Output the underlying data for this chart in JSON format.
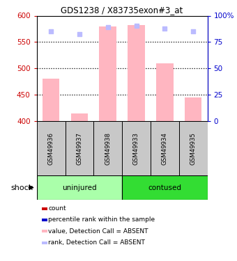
{
  "title": "GDS1238 / X83735exon#3_at",
  "samples": [
    "GSM49936",
    "GSM49937",
    "GSM49938",
    "GSM49933",
    "GSM49934",
    "GSM49935"
  ],
  "groups": [
    {
      "label": "uninjured",
      "indices": [
        0,
        1,
        2
      ],
      "color": "#AAFFAA"
    },
    {
      "label": "contused",
      "indices": [
        3,
        4,
        5
      ],
      "color": "#33DD33"
    }
  ],
  "shock_label": "shock",
  "bar_values_absent": [
    480,
    415,
    580,
    582,
    510,
    445
  ],
  "rank_values_absent": [
    570,
    565,
    578,
    581,
    575,
    570
  ],
  "ylim_left": [
    400,
    600
  ],
  "ylim_right": [
    0,
    100
  ],
  "yticks_left": [
    400,
    450,
    500,
    550,
    600
  ],
  "yticks_right": [
    0,
    25,
    50,
    75,
    100
  ],
  "ytick_labels_right": [
    "0",
    "25",
    "50",
    "75",
    "100%"
  ],
  "bar_color_absent": "#FFB6C1",
  "rank_color_absent": "#BBBBFF",
  "left_axis_color": "#CC0000",
  "right_axis_color": "#0000CC",
  "dotted_line_color": "black",
  "bg_color": "white",
  "legend_items": [
    {
      "color": "#CC0000",
      "label": "count"
    },
    {
      "color": "#0000CC",
      "label": "percentile rank within the sample"
    },
    {
      "color": "#FFB6C1",
      "label": "value, Detection Call = ABSENT"
    },
    {
      "color": "#BBBBFF",
      "label": "rank, Detection Call = ABSENT"
    }
  ]
}
